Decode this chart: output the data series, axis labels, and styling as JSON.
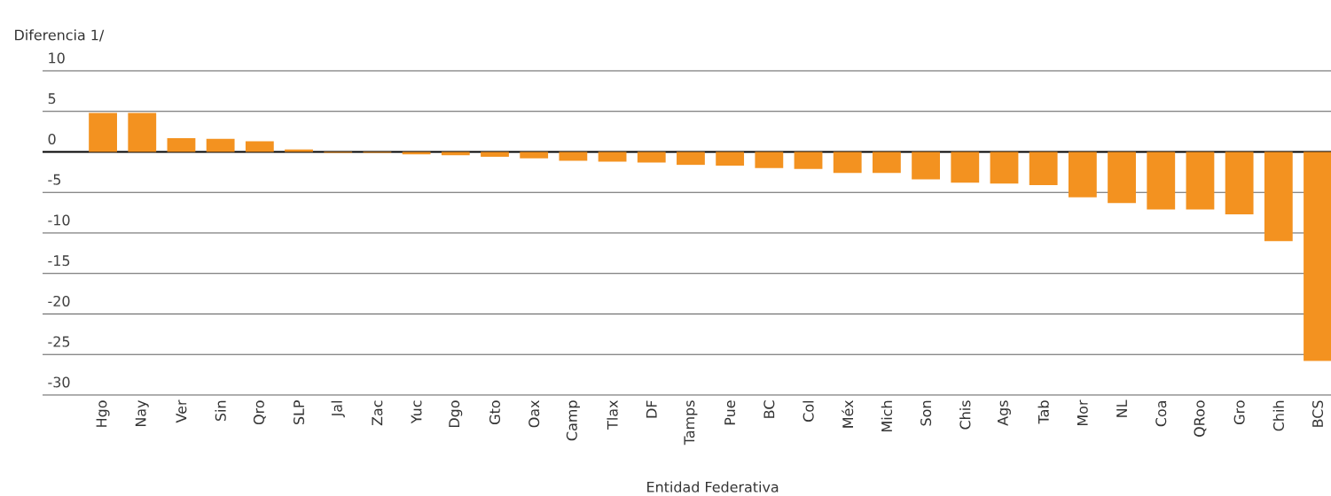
{
  "chart_data": {
    "type": "bar",
    "xlabel": "Entidad Federativa",
    "ylabel": "Diferencia 1/",
    "categories": [
      "Hgo",
      "Nay",
      "Ver",
      "Sin",
      "Qro",
      "SLP",
      "Jal",
      "Zac",
      "Yuc",
      "Dgo",
      "Gto",
      "Oax",
      "Camp",
      "Tlax",
      "DF",
      "Tamps",
      "Pue",
      "BC",
      "Col",
      "Méx",
      "Mich",
      "Son",
      "Chis",
      "Ags",
      "Tab",
      "Mor",
      "NL",
      "Coa",
      "QRoo",
      "Gro",
      "Chih",
      "BCS"
    ],
    "values": [
      4.8,
      4.8,
      1.7,
      1.6,
      1.3,
      0.3,
      -0.1,
      -0.1,
      -0.3,
      -0.4,
      -0.6,
      -0.8,
      -1.1,
      -1.2,
      -1.3,
      -1.6,
      -1.7,
      -2.0,
      -2.1,
      -2.6,
      -2.6,
      -3.4,
      -3.8,
      -3.9,
      -4.1,
      -5.6,
      -6.3,
      -7.1,
      -7.1,
      -7.7,
      -11.0,
      -25.8
    ],
    "color": "#f39220",
    "ylim": [
      -30,
      10
    ],
    "yticks": [
      10,
      5,
      0,
      -5,
      -10,
      -15,
      -20,
      -25,
      -30
    ],
    "grid": "y"
  }
}
